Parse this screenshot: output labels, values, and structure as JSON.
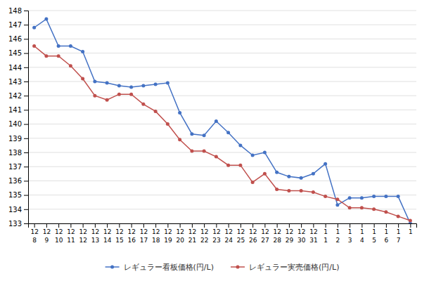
{
  "chart_data": {
    "type": "line",
    "categories": [
      [
        "12",
        "8"
      ],
      [
        "12",
        "9"
      ],
      [
        "12",
        "10"
      ],
      [
        "12",
        "11"
      ],
      [
        "12",
        "12"
      ],
      [
        "12",
        "13"
      ],
      [
        "12",
        "14"
      ],
      [
        "12",
        "15"
      ],
      [
        "12",
        "16"
      ],
      [
        "12",
        "17"
      ],
      [
        "12",
        "18"
      ],
      [
        "12",
        "19"
      ],
      [
        "12",
        "20"
      ],
      [
        "12",
        "21"
      ],
      [
        "12",
        "22"
      ],
      [
        "12",
        "23"
      ],
      [
        "12",
        "24"
      ],
      [
        "12",
        "25"
      ],
      [
        "12",
        "26"
      ],
      [
        "12",
        "27"
      ],
      [
        "12",
        "28"
      ],
      [
        "12",
        "29"
      ],
      [
        "12",
        "30"
      ],
      [
        "12",
        "31"
      ],
      [
        "1",
        "1"
      ],
      [
        "1",
        "2"
      ],
      [
        "1",
        "3"
      ],
      [
        "1",
        "4"
      ],
      [
        "1",
        "5"
      ],
      [
        "1",
        "6"
      ],
      [
        "1",
        "7"
      ],
      [
        "1",
        null
      ]
    ],
    "series": [
      {
        "name": "レギュラー看板価格(円/L)",
        "color": "#4472C4",
        "marker": "circle",
        "values": [
          146.8,
          147.4,
          145.5,
          145.5,
          145.1,
          143.0,
          142.9,
          142.7,
          142.6,
          142.7,
          142.8,
          142.9,
          140.8,
          139.3,
          139.2,
          140.2,
          139.4,
          138.5,
          137.8,
          138.0,
          136.6,
          136.3,
          136.2,
          136.5,
          137.2,
          134.3,
          134.8,
          134.8,
          134.9,
          134.9,
          134.9,
          133.0
        ]
      },
      {
        "name": "レギュラー実売価格(円/L)",
        "color": "#C0504D",
        "marker": "circle",
        "values": [
          145.5,
          144.8,
          144.8,
          144.1,
          143.2,
          142.0,
          141.7,
          142.1,
          142.1,
          141.4,
          140.9,
          140.0,
          138.9,
          138.1,
          138.1,
          137.7,
          137.1,
          137.1,
          135.9,
          136.5,
          135.4,
          135.3,
          135.3,
          135.2,
          134.9,
          134.7,
          134.1,
          134.1,
          134.0,
          133.8,
          133.5,
          133.2
        ]
      }
    ],
    "ylim": [
      133,
      148
    ],
    "yticks": [
      133,
      134,
      135,
      136,
      137,
      138,
      139,
      140,
      141,
      142,
      143,
      144,
      145,
      146,
      147,
      148
    ],
    "grid": true,
    "legend": "bottom"
  }
}
